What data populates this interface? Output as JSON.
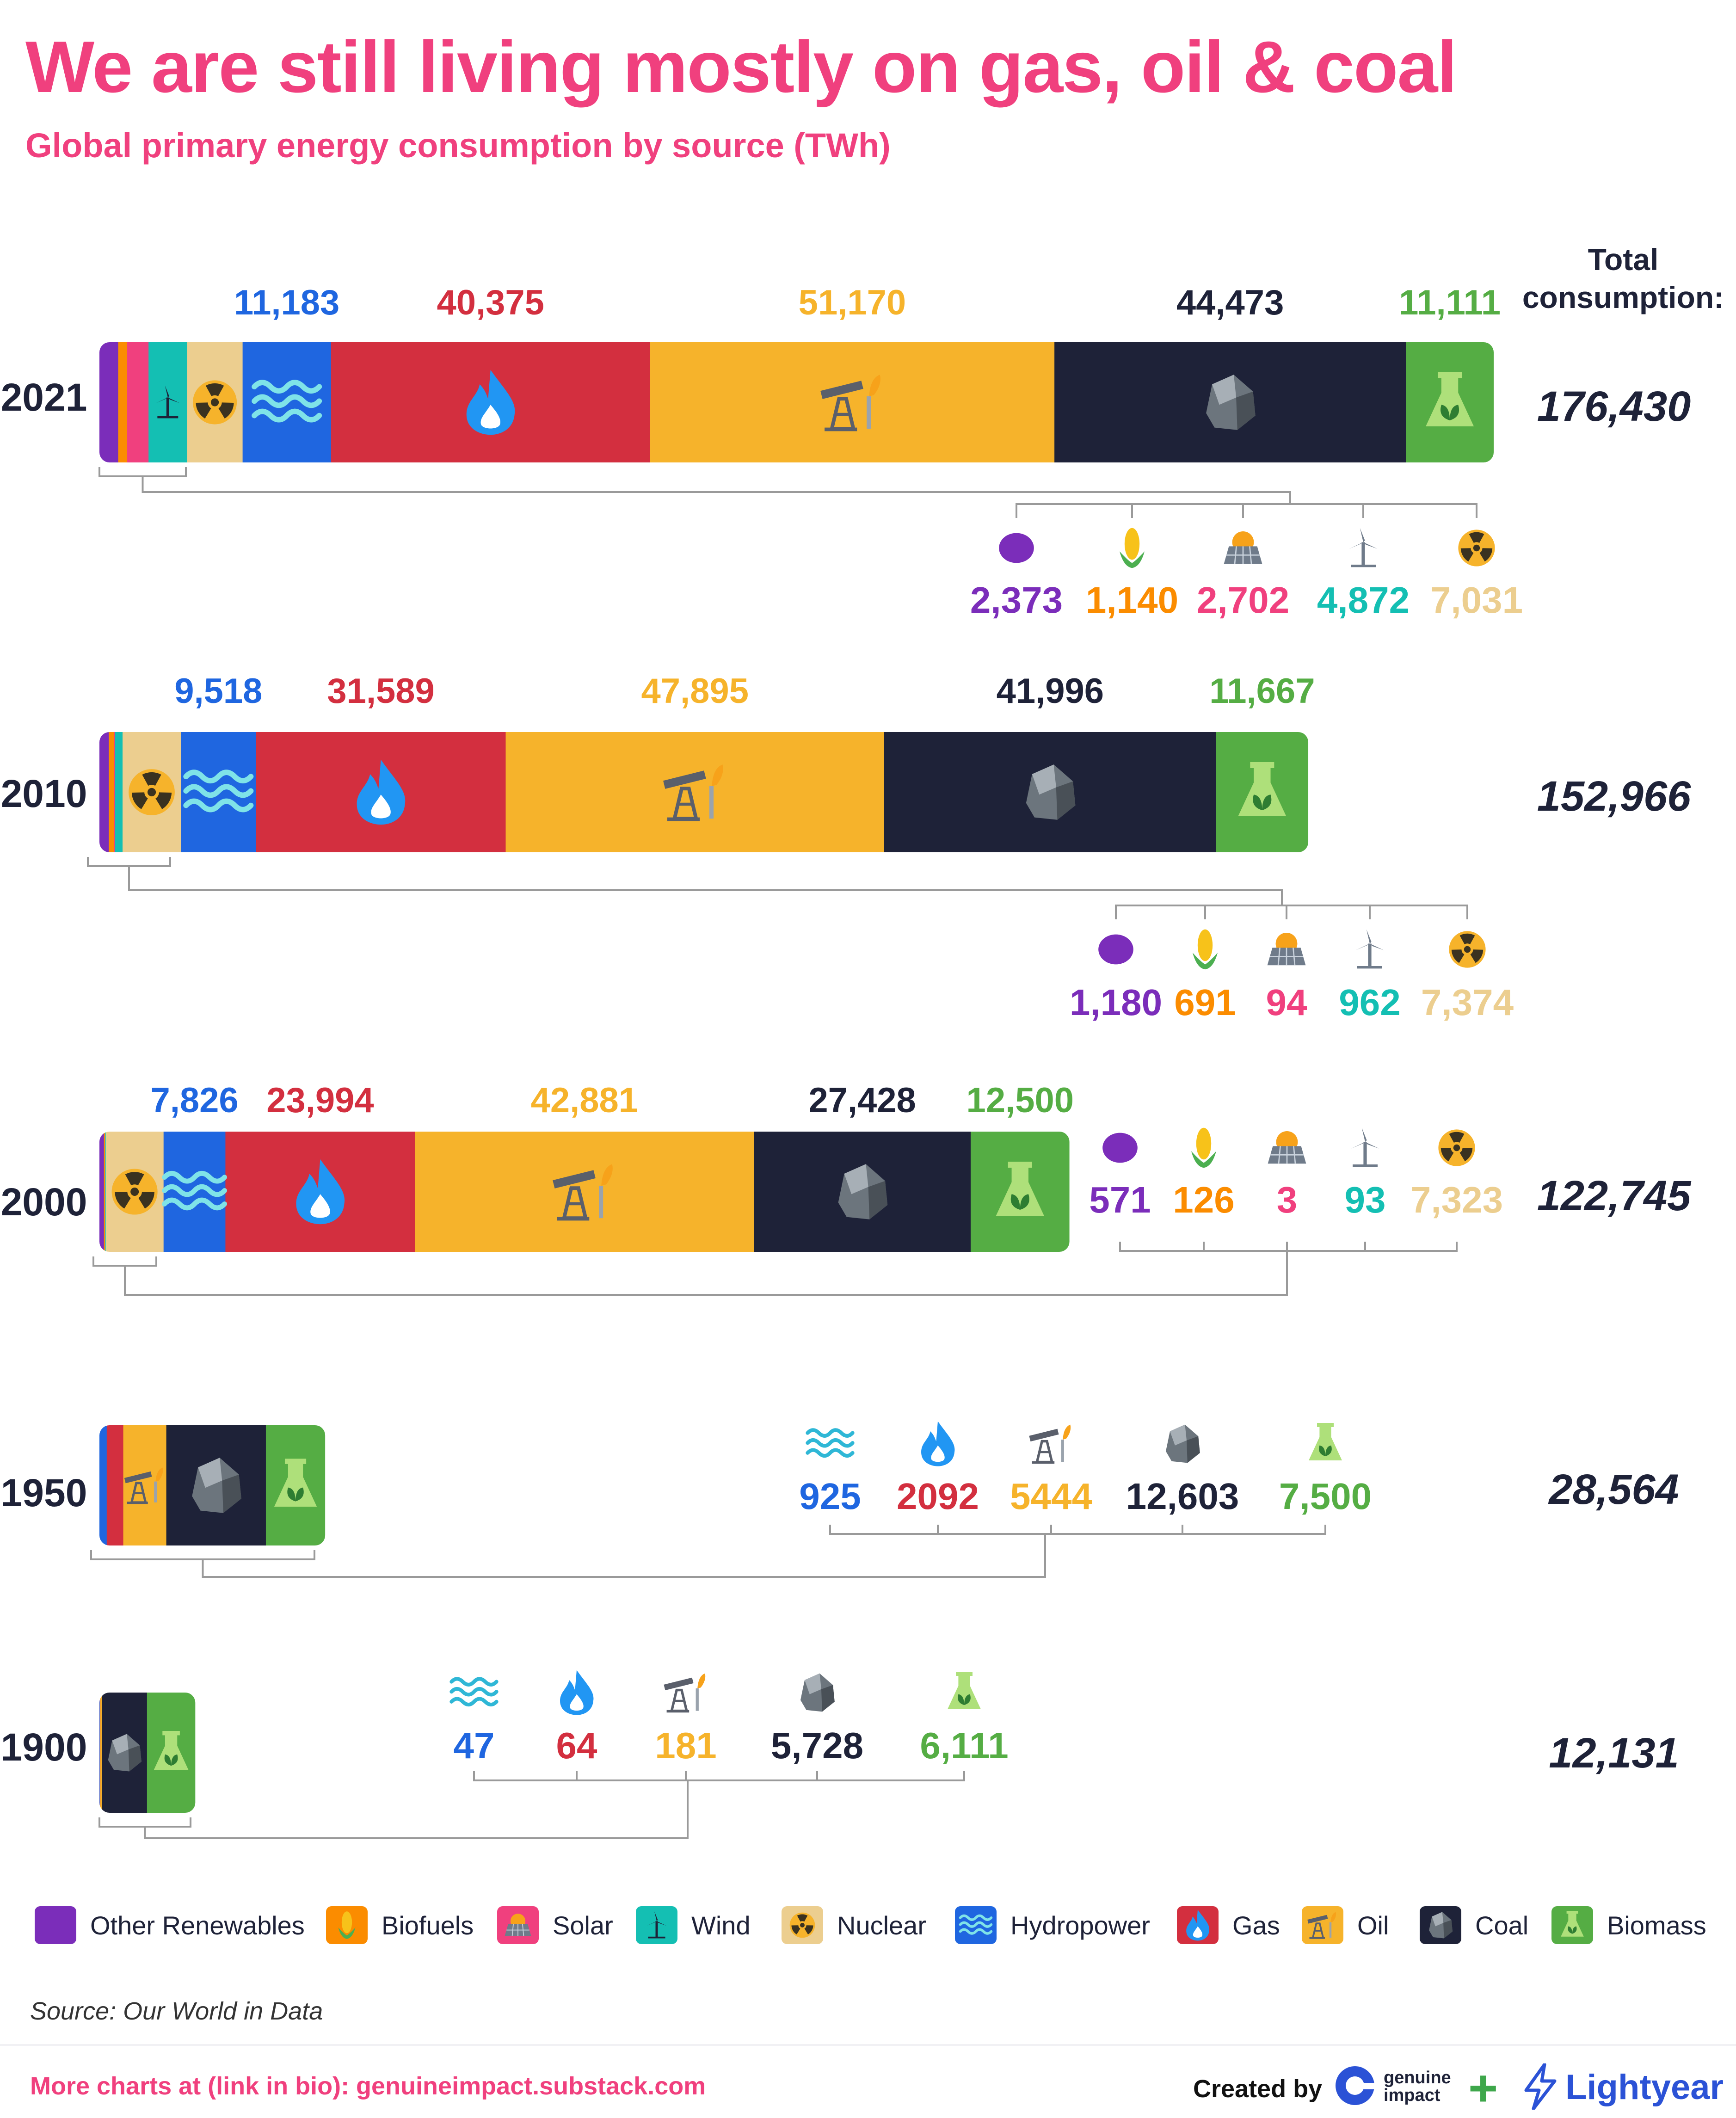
{
  "header": {
    "title": "We are still living mostly on gas, oil & coal",
    "subtitle": "Global primary energy consumption by source (TWh)"
  },
  "total_heading": "Total consumption:",
  "colors": {
    "other": "#7b2dba",
    "biofuels": "#fb8c00",
    "solar": "#f0407e",
    "wind": "#14bfb3",
    "nuclear": "#ecce8f",
    "hydro": "#1f66e0",
    "gas": "#d32f3f",
    "oil": "#f6b32b",
    "coal": "#1e2238",
    "biomass": "#55ad44",
    "bracket": "#9a9a9a"
  },
  "label_colors": {
    "other": "#7b2dba",
    "biofuels": "#fb8c00",
    "solar": "#f0407e",
    "wind": "#14bfb3",
    "nuclear": "#ecce8f",
    "hydro": "#1f66e0",
    "gas": "#d32f3f",
    "oil": "#f6b32b",
    "coal": "#1e2238",
    "biomass": "#55ad44"
  },
  "icons": {
    "other": "blob-icon",
    "biofuels": "corn-icon",
    "solar": "solar-panel-icon",
    "wind": "wind-turbine-icon",
    "nuclear": "radiation-icon",
    "hydro": "wave-icon",
    "gas": "flame-icon",
    "oil": "oil-pump-icon",
    "coal": "coal-rock-icon",
    "biomass": "flask-icon"
  },
  "legend": [
    {
      "key": "other",
      "label": "Other Renewables"
    },
    {
      "key": "biofuels",
      "label": "Biofuels"
    },
    {
      "key": "solar",
      "label": "Solar"
    },
    {
      "key": "wind",
      "label": "Wind"
    },
    {
      "key": "nuclear",
      "label": "Nuclear"
    },
    {
      "key": "hydro",
      "label": "Hydropower"
    },
    {
      "key": "gas",
      "label": "Gas"
    },
    {
      "key": "oil",
      "label": "Oil"
    },
    {
      "key": "coal",
      "label": "Coal"
    },
    {
      "key": "biomass",
      "label": "Biomass"
    }
  ],
  "footer": {
    "source": "Source: Our World in Data",
    "more": "More charts at (link in bio): genuineimpact.substack.com",
    "created_by": "Created by",
    "brand1_line1": "genuine",
    "brand1_line2": "impact",
    "brand2": "Lightyear"
  },
  "chart_data": {
    "type": "bar",
    "orientation": "horizontal",
    "stacked": true,
    "unit": "TWh",
    "categories": [
      "2021",
      "2010",
      "2000",
      "1950",
      "1900"
    ],
    "series_order": [
      "other",
      "biofuels",
      "solar",
      "wind",
      "nuclear",
      "hydro",
      "gas",
      "oil",
      "coal",
      "biomass"
    ],
    "years": [
      {
        "year": "2021",
        "total": "176,430",
        "values": {
          "other": 2373,
          "biofuels": 1140,
          "solar": 2702,
          "wind": 4872,
          "nuclear": 7031,
          "hydro": 11183,
          "gas": 40375,
          "oil": 51170,
          "coal": 44473,
          "biomass": 11111
        },
        "labels": {
          "other": "2,373",
          "biofuels": "1,140",
          "solar": "2,702",
          "wind": "4,872",
          "nuclear": "7,031",
          "hydro": "11,183",
          "gas": "40,375",
          "oil": "51,170",
          "coal": "44,473",
          "biomass": "11,111"
        }
      },
      {
        "year": "2010",
        "total": "152,966",
        "values": {
          "other": 1180,
          "biofuels": 691,
          "solar": 94,
          "wind": 962,
          "nuclear": 7374,
          "hydro": 9518,
          "gas": 31589,
          "oil": 47895,
          "coal": 41996,
          "biomass": 11667
        },
        "labels": {
          "other": "1,180",
          "biofuels": "691",
          "solar": "94",
          "wind": "962",
          "nuclear": "7,374",
          "hydro": "9,518",
          "gas": "31,589",
          "oil": "47,895",
          "coal": "41,996",
          "biomass": "11,667"
        }
      },
      {
        "year": "2000",
        "total": "122,745",
        "values": {
          "other": 571,
          "biofuels": 126,
          "solar": 3,
          "wind": 93,
          "nuclear": 7323,
          "hydro": 7826,
          "gas": 23994,
          "oil": 42881,
          "coal": 27428,
          "biomass": 12500
        },
        "labels": {
          "other": "571",
          "biofuels": "126",
          "solar": "3",
          "wind": "93",
          "nuclear": "7,323",
          "hydro": "7,826",
          "gas": "23,994",
          "oil": "42,881",
          "coal": "27,428",
          "biomass": "12,500"
        }
      },
      {
        "year": "1950",
        "total": "28,564",
        "values": {
          "hydro": 925,
          "gas": 2092,
          "oil": 5444,
          "coal": 12603,
          "biomass": 7500
        },
        "labels": {
          "hydro": "925",
          "gas": "2092",
          "oil": "5444",
          "coal": "12,603",
          "biomass": "7,500"
        }
      },
      {
        "year": "1900",
        "total": "12,131",
        "values": {
          "hydro": 47,
          "gas": 64,
          "oil": 181,
          "coal": 5728,
          "biomass": 6111
        },
        "labels": {
          "hydro": "47",
          "gas": "64",
          "oil": "181",
          "coal": "5,728",
          "biomass": "6,111"
        }
      }
    ],
    "xlim": [
      0,
      176430
    ],
    "grid": false,
    "legend_position": "bottom"
  }
}
